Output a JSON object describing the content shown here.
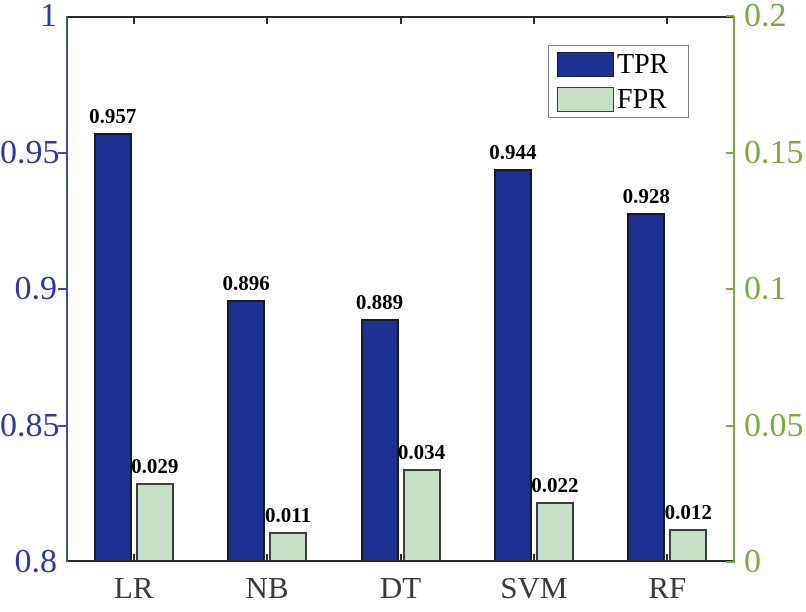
{
  "chart_data": {
    "type": "bar",
    "categories": [
      "LR",
      "NB",
      "DT",
      "SVM",
      "RF"
    ],
    "series": [
      {
        "name": "TPR",
        "axis": "left",
        "values": [
          0.957,
          0.896,
          0.889,
          0.944,
          0.928
        ],
        "labels": [
          "0.957",
          "0.896",
          "0.889",
          "0.944",
          "0.928"
        ],
        "color": "#1d3193",
        "border_color": "#161a2b"
      },
      {
        "name": "FPR",
        "axis": "right",
        "values": [
          0.029,
          0.011,
          0.034,
          0.022,
          0.012
        ],
        "labels": [
          "0.029",
          "0.011",
          "0.034",
          "0.022",
          "0.012"
        ],
        "color": "#c6dfc7",
        "border_color": "#3b3f3c"
      }
    ],
    "left_axis": {
      "min": 0.8,
      "max": 1.0,
      "tick_values": [
        1,
        0.95,
        0.9,
        0.85,
        0.8
      ],
      "tick_labels": [
        "1",
        "0.95",
        "0.9",
        "0.85",
        "0.8"
      ],
      "color": "#2a3aa2"
    },
    "right_axis": {
      "min": 0,
      "max": 0.2,
      "tick_values": [
        0.2,
        0.15,
        0.1,
        0.05,
        0
      ],
      "tick_labels": [
        "0.2",
        "0.15",
        "0.1",
        "0.05",
        "0"
      ],
      "color": "#77ac41"
    },
    "legend": {
      "position": "top-right",
      "entries": [
        "TPR",
        "FPR"
      ]
    },
    "grid": false,
    "title": "",
    "xlabel": "",
    "ylabel_left": "",
    "ylabel_right": ""
  }
}
